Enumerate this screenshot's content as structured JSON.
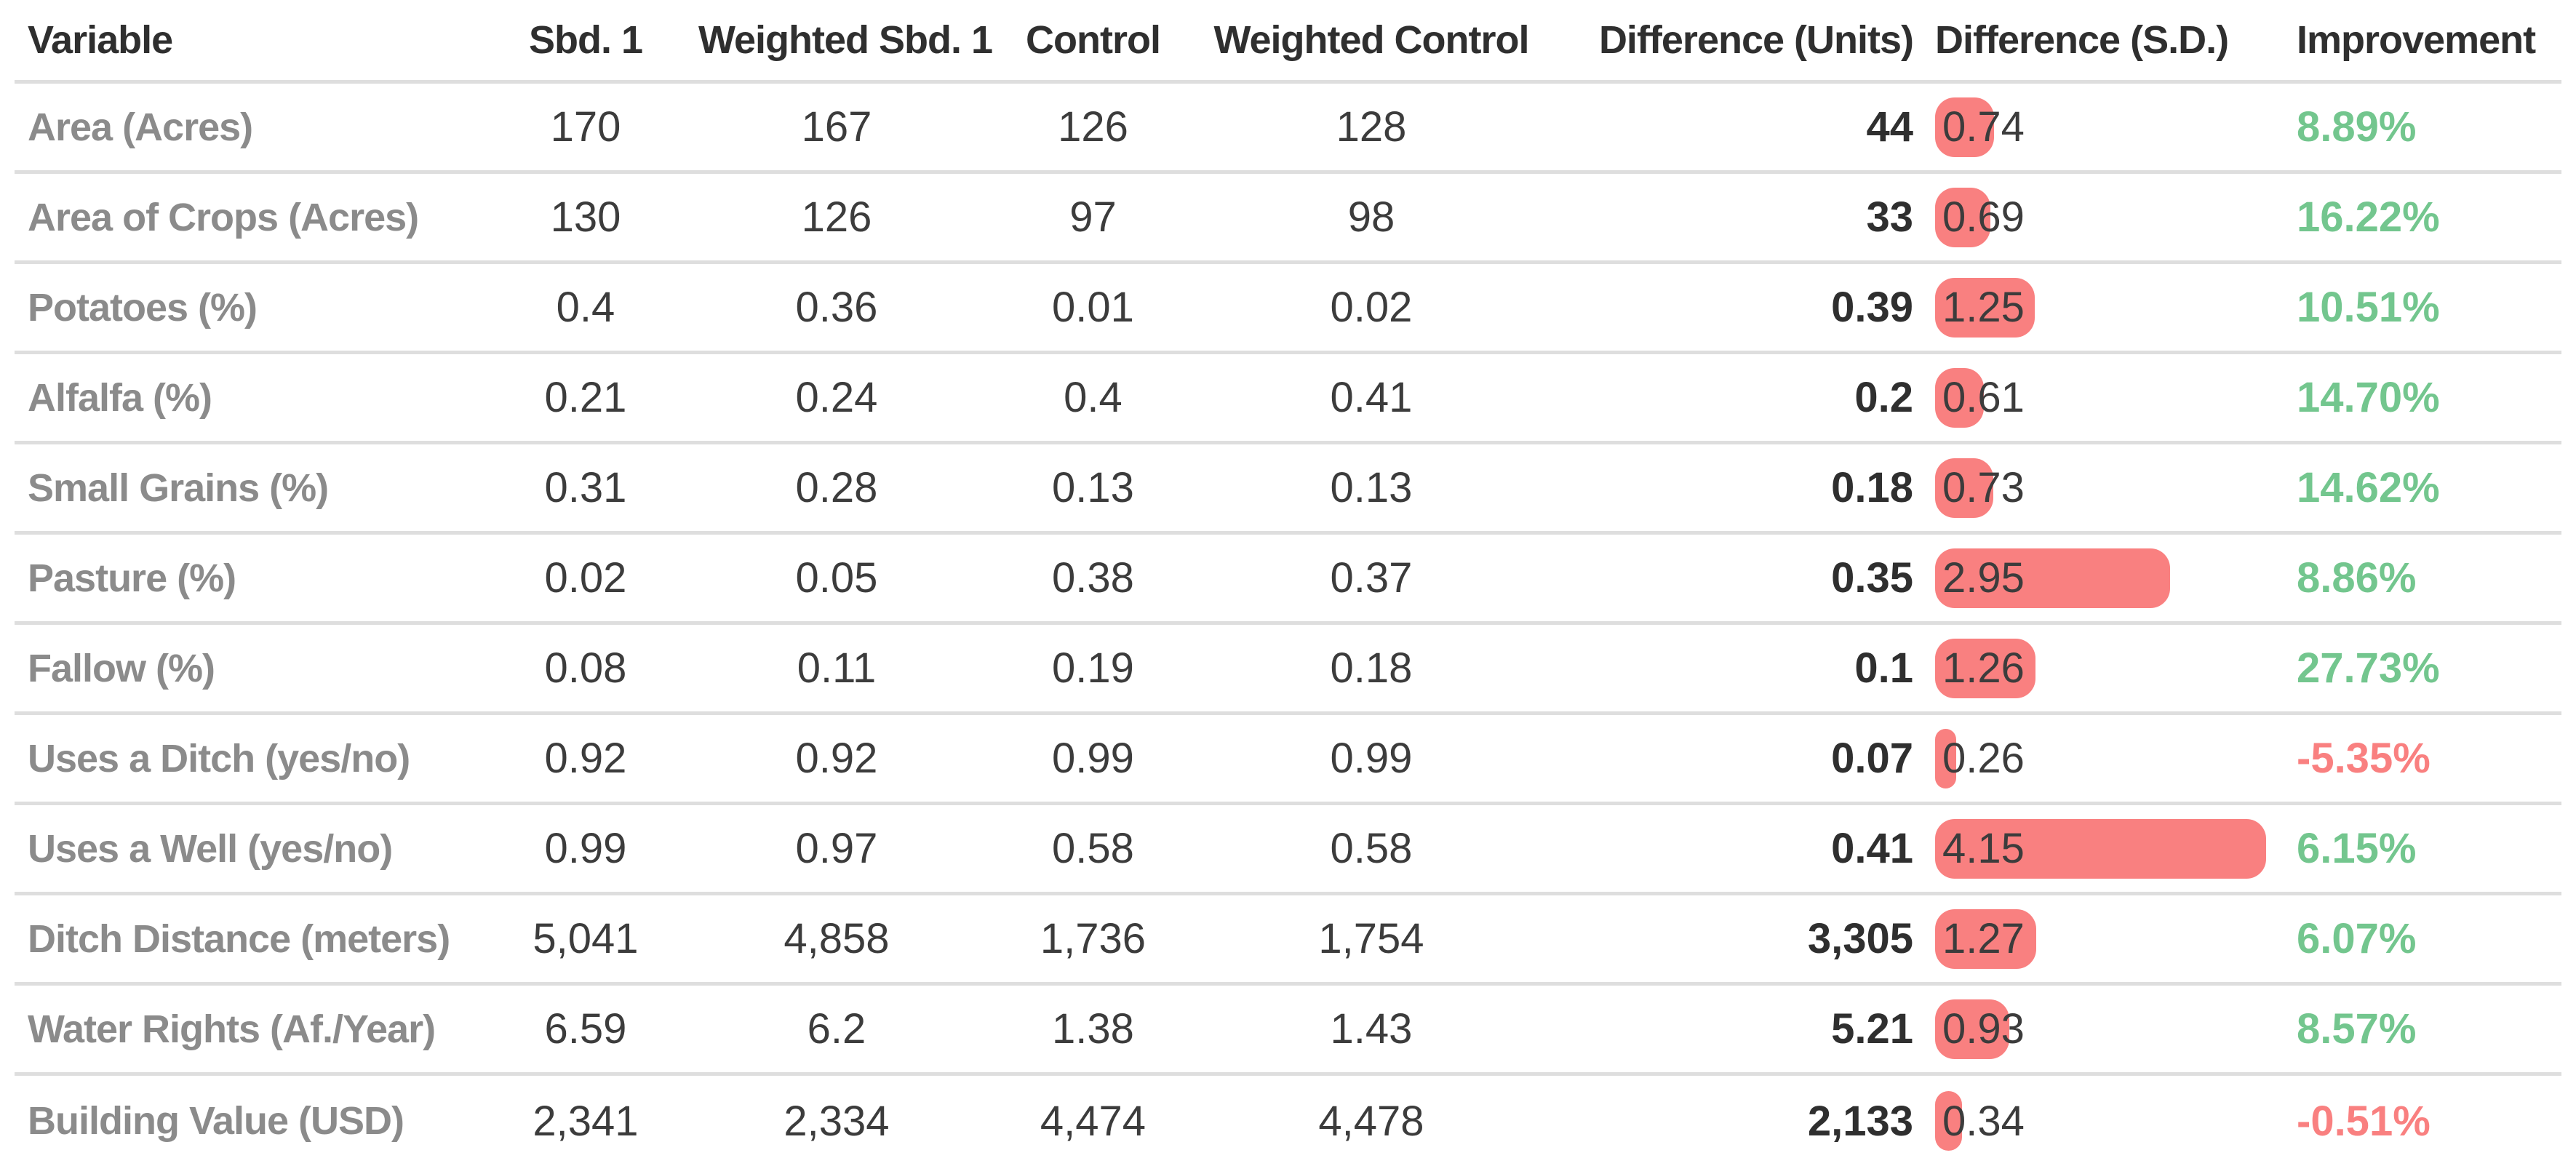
{
  "colors": {
    "positive_improvement": "#73c68e",
    "negative_improvement": "#f98080",
    "sd_bar": "#f98080",
    "row_label": "#8b8b8b",
    "header_text": "#2f2f2f",
    "value_text": "#3c3c3c",
    "divider": "#dedede"
  },
  "chart_data": {
    "type": "table",
    "columns": [
      "Variable",
      "Sbd. 1",
      "Weighted Sbd. 1",
      "Control",
      "Weighted Control",
      "Difference (Units)",
      "Difference (S.D.)",
      "Improvement"
    ],
    "embedded_bar": {
      "column": "Difference (S.D.)",
      "scale_max": 4.15,
      "color": "#f98080"
    },
    "rows": [
      {
        "variable": "Area (Acres)",
        "sbd1": 170,
        "weighted_sbd1": 167,
        "control": 126,
        "weighted_control": 128,
        "difference_units": 44,
        "difference_sd": 0.74,
        "improvement": "8.89%"
      },
      {
        "variable": "Area of Crops (Acres)",
        "sbd1": 130,
        "weighted_sbd1": 126,
        "control": 97,
        "weighted_control": 98,
        "difference_units": 33,
        "difference_sd": 0.69,
        "improvement": "16.22%"
      },
      {
        "variable": "Potatoes (%)",
        "sbd1": 0.4,
        "weighted_sbd1": 0.36,
        "control": 0.01,
        "weighted_control": 0.02,
        "difference_units": 0.39,
        "difference_sd": 1.25,
        "improvement": "10.51%"
      },
      {
        "variable": "Alfalfa (%)",
        "sbd1": 0.21,
        "weighted_sbd1": 0.24,
        "control": 0.4,
        "weighted_control": 0.41,
        "difference_units": 0.2,
        "difference_sd": 0.61,
        "improvement": "14.70%"
      },
      {
        "variable": "Small Grains (%)",
        "sbd1": 0.31,
        "weighted_sbd1": 0.28,
        "control": 0.13,
        "weighted_control": 0.13,
        "difference_units": 0.18,
        "difference_sd": 0.73,
        "improvement": "14.62%"
      },
      {
        "variable": "Pasture (%)",
        "sbd1": 0.02,
        "weighted_sbd1": 0.05,
        "control": 0.38,
        "weighted_control": 0.37,
        "difference_units": 0.35,
        "difference_sd": 2.95,
        "improvement": "8.86%"
      },
      {
        "variable": "Fallow (%)",
        "sbd1": 0.08,
        "weighted_sbd1": 0.11,
        "control": 0.19,
        "weighted_control": 0.18,
        "difference_units": 0.1,
        "difference_sd": 1.26,
        "improvement": "27.73%"
      },
      {
        "variable": "Uses a Ditch (yes/no)",
        "sbd1": 0.92,
        "weighted_sbd1": 0.92,
        "control": 0.99,
        "weighted_control": 0.99,
        "difference_units": 0.07,
        "difference_sd": 0.26,
        "improvement": "-5.35%"
      },
      {
        "variable": "Uses a Well (yes/no)",
        "sbd1": 0.99,
        "weighted_sbd1": 0.97,
        "control": 0.58,
        "weighted_control": 0.58,
        "difference_units": 0.41,
        "difference_sd": 4.15,
        "improvement": "6.15%"
      },
      {
        "variable": "Ditch Distance (meters)",
        "sbd1": 5041,
        "weighted_sbd1": 4858,
        "control": 1736,
        "weighted_control": 1754,
        "difference_units": 3305,
        "difference_sd": 1.27,
        "improvement": "6.07%"
      },
      {
        "variable": "Water Rights (Af./Year)",
        "sbd1": 6.59,
        "weighted_sbd1": 6.2,
        "control": 1.38,
        "weighted_control": 1.43,
        "difference_units": 5.21,
        "difference_sd": 0.93,
        "improvement": "8.57%"
      },
      {
        "variable": "Building Value (USD)",
        "sbd1": 2341,
        "weighted_sbd1": 2334,
        "control": 4474,
        "weighted_control": 4478,
        "difference_units": 2133,
        "difference_sd": 0.34,
        "improvement": "-0.51%"
      }
    ]
  }
}
